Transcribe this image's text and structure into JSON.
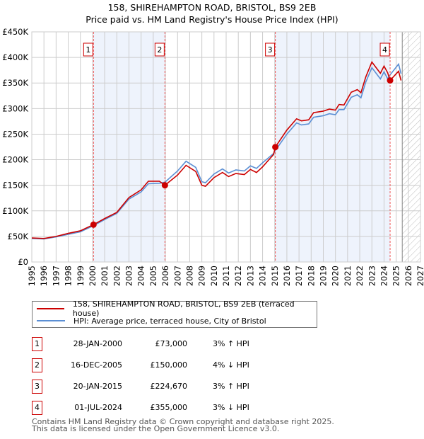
{
  "chart_data": {
    "type": "line",
    "title": "158, SHIREHAMPTON ROAD, BRISTOL, BS9 2EB",
    "subtitle": "Price paid vs. HM Land Registry's House Price Index (HPI)",
    "xlim": [
      1995,
      2027
    ],
    "ylim": [
      0,
      450000
    ],
    "yticks": [
      {
        "v": 0,
        "label": "£0"
      },
      {
        "v": 50000,
        "label": "£50K"
      },
      {
        "v": 100000,
        "label": "£100K"
      },
      {
        "v": 150000,
        "label": "£150K"
      },
      {
        "v": 200000,
        "label": "£200K"
      },
      {
        "v": 250000,
        "label": "£250K"
      },
      {
        "v": 300000,
        "label": "£300K"
      },
      {
        "v": 350000,
        "label": "£350K"
      },
      {
        "v": 400000,
        "label": "£400K"
      },
      {
        "v": 450000,
        "label": "£450K"
      }
    ],
    "xticks": [
      "1995",
      "1996",
      "1997",
      "1998",
      "1999",
      "2000",
      "2001",
      "2002",
      "2003",
      "2004",
      "2005",
      "2006",
      "2007",
      "2008",
      "2009",
      "2010",
      "2011",
      "2012",
      "2013",
      "2014",
      "2015",
      "2016",
      "2017",
      "2018",
      "2019",
      "2020",
      "2021",
      "2022",
      "2023",
      "2024",
      "2025",
      "2026",
      "2027"
    ],
    "forecast_start": 2025.5,
    "grid": true,
    "series": [
      {
        "name": "158, SHIREHAMPTON ROAD, BRISTOL, BS9 2EB (terraced house)",
        "color": "#cc0000",
        "x": [
          1995,
          1996,
          1997,
          1998,
          1999,
          2000.08,
          2001,
          2002,
          2003,
          2004,
          2004.6,
          2005.5,
          2005.96,
          2007,
          2007.7,
          2008.5,
          2009,
          2009.3,
          2010,
          2010.7,
          2011.2,
          2011.8,
          2012.5,
          2013,
          2013.5,
          2014,
          2014.9,
          2015.05,
          2016,
          2016.8,
          2017.2,
          2017.8,
          2018.2,
          2019,
          2019.5,
          2020,
          2020.3,
          2020.7,
          2021.3,
          2021.8,
          2022.1,
          2022.5,
          2023,
          2023.7,
          2024,
          2024.3,
          2024.5,
          2025,
          2025.2,
          2025.4
        ],
        "y": [
          47000,
          46000,
          50000,
          56000,
          61000,
          73000,
          85000,
          97000,
          126000,
          141000,
          158000,
          158000,
          150000,
          170000,
          189000,
          177000,
          150000,
          148000,
          165000,
          175000,
          167000,
          173000,
          171000,
          181000,
          175000,
          186000,
          210000,
          224670,
          258000,
          280000,
          276000,
          278000,
          292000,
          295000,
          299000,
          297000,
          308000,
          307000,
          332000,
          337000,
          331000,
          362000,
          391000,
          369000,
          383000,
          370000,
          355000,
          368000,
          373000,
          355000
        ]
      },
      {
        "name": "HPI: Average price, terraced house, City of Bristol",
        "color": "#5b8fd4",
        "x": [
          1995,
          1996,
          1997,
          1998,
          1999,
          2000.08,
          2001,
          2002,
          2003,
          2004,
          2004.6,
          2005.5,
          2005.96,
          2007,
          2007.7,
          2008.5,
          2009,
          2009.3,
          2010,
          2010.7,
          2011.2,
          2011.8,
          2012.5,
          2013,
          2013.5,
          2014,
          2014.9,
          2015.05,
          2016,
          2016.8,
          2017.2,
          2017.8,
          2018.2,
          2019,
          2019.5,
          2020,
          2020.3,
          2020.7,
          2021.3,
          2021.8,
          2022.1,
          2022.5,
          2023,
          2023.7,
          2024,
          2024.3,
          2024.5,
          2025,
          2025.2,
          2025.4
        ],
        "y": [
          46000,
          45000,
          49000,
          54000,
          59000,
          71000,
          83000,
          95000,
          123000,
          137000,
          153000,
          154000,
          156000,
          178000,
          197000,
          185000,
          157000,
          155000,
          172000,
          182000,
          174000,
          180000,
          178000,
          188000,
          183000,
          194000,
          212000,
          218000,
          250000,
          272000,
          268000,
          270000,
          283000,
          286000,
          290000,
          288000,
          298000,
          298000,
          322000,
          327000,
          321000,
          352000,
          380000,
          358000,
          372000,
          358000,
          366000,
          381000,
          387000,
          368000
        ]
      }
    ],
    "sales": [
      {
        "n": "1",
        "x": 2000.08,
        "y": 73000,
        "date": "28-JAN-2000",
        "price": "£73,000",
        "hpi": "3% ↑ HPI"
      },
      {
        "n": "2",
        "x": 2005.96,
        "y": 150000,
        "date": "16-DEC-2005",
        "price": "£150,000",
        "hpi": "4% ↓ HPI"
      },
      {
        "n": "3",
        "x": 2015.05,
        "y": 224670,
        "date": "20-JAN-2015",
        "price": "£224,670",
        "hpi": "3% ↑ HPI"
      },
      {
        "n": "4",
        "x": 2024.5,
        "y": 355000,
        "date": "01-JUL-2024",
        "price": "£355,000",
        "hpi": "3% ↓ HPI"
      }
    ],
    "colors": {
      "property": "#cc0000",
      "hpi": "#5b8fd4",
      "shade": "#eef3fc"
    }
  },
  "legend": {
    "property": "158, SHIREHAMPTON ROAD, BRISTOL, BS9 2EB (terraced house)",
    "hpi": "HPI: Average price, terraced house, City of Bristol"
  },
  "footer": {
    "line1": "Contains HM Land Registry data © Crown copyright and database right 2025.",
    "line2": "This data is licensed under the Open Government Licence v3.0."
  }
}
